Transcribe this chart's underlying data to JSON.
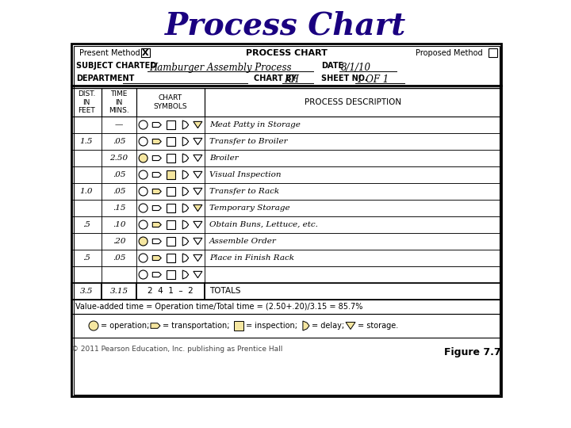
{
  "title": "Process Chart",
  "title_color": "#1a0080",
  "title_fontsize": 28,
  "bg_color": "#ffffff",
  "symbol_fill": "#f5e6a0",
  "header_row2_value": "Hamburger Assembly Process",
  "header_row2_date_value": "8/1/10",
  "header_row3_chartby_value": "KH",
  "header_row3_sheet_value": "1 OF 1",
  "rows": [
    {
      "dist": "",
      "time": "—",
      "desc": "Meat Patty in Storage",
      "active": [
        4
      ]
    },
    {
      "dist": "1.5",
      "time": ".05",
      "desc": "Transfer to Broiler",
      "active": [
        1
      ]
    },
    {
      "dist": "",
      "time": "2.50",
      "desc": "Broiler",
      "active": [
        0
      ]
    },
    {
      "dist": "",
      "time": ".05",
      "desc": "Visual Inspection",
      "active": [
        2
      ]
    },
    {
      "dist": "1.0",
      "time": ".05",
      "desc": "Transfer to Rack",
      "active": [
        1
      ]
    },
    {
      "dist": "",
      "time": ".15",
      "desc": "Temporary Storage",
      "active": [
        4
      ]
    },
    {
      "dist": ".5",
      "time": ".10",
      "desc": "Obtain Buns, Lettuce, etc.",
      "active": [
        1
      ]
    },
    {
      "dist": "",
      "time": ".20",
      "desc": "Assemble Order",
      "active": [
        0
      ]
    },
    {
      "dist": ".5",
      "time": ".05",
      "desc": "Place in Finish Rack",
      "active": [
        1
      ]
    },
    {
      "dist": "",
      "time": "",
      "desc": "",
      "active": []
    }
  ],
  "totals_dist": "3.5",
  "totals_time": "3.15",
  "totals_symbols": "2  4  1  –  2",
  "value_added_text": "Value-added time = Operation time/Total time = (2.50+.20)/3.15 = 85.7%",
  "footer_left": "© 2011 Pearson Education, Inc. publishing as Prentice Hall",
  "footer_right": "Figure 7.7"
}
